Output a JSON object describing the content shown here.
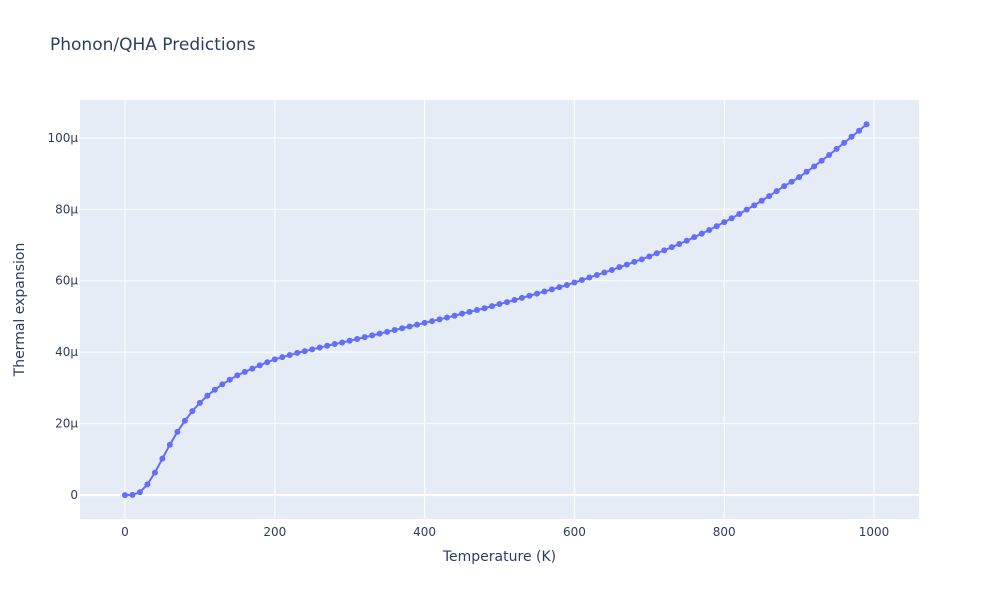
{
  "chart_data": {
    "type": "line",
    "title": "Phonon/QHA Predictions",
    "x_label": "Temperature (K)",
    "y_label": "Thermal expansion",
    "color": "#636efa",
    "grid": true,
    "xlim": [
      -60,
      1060
    ],
    "ylim": [
      -6.7e-06,
      0.0001106
    ],
    "xticks": [
      0,
      200,
      400,
      600,
      800,
      1000
    ],
    "yticks": [
      0,
      {
        "value": 2e-05,
        "label": "20µ"
      },
      {
        "value": 4e-05,
        "label": "40µ"
      },
      {
        "value": 6e-05,
        "label": "60µ"
      },
      {
        "value": 8e-05,
        "label": "80µ"
      },
      {
        "value": 0.0001,
        "label": "100µ"
      }
    ],
    "x": [
      0,
      10,
      20,
      30,
      40,
      50,
      60,
      70,
      80,
      90,
      100,
      110,
      120,
      130,
      140,
      150,
      160,
      170,
      180,
      190,
      200,
      210,
      220,
      230,
      240,
      250,
      260,
      270,
      280,
      290,
      300,
      310,
      320,
      330,
      340,
      350,
      360,
      370,
      380,
      390,
      400,
      410,
      420,
      430,
      440,
      450,
      460,
      470,
      480,
      490,
      500,
      510,
      520,
      530,
      540,
      550,
      560,
      570,
      580,
      590,
      600,
      610,
      620,
      630,
      640,
      650,
      660,
      670,
      680,
      690,
      700,
      710,
      720,
      730,
      740,
      750,
      760,
      770,
      780,
      790,
      800,
      810,
      820,
      830,
      840,
      850,
      860,
      870,
      880,
      890,
      900,
      910,
      920,
      930,
      940,
      950,
      960,
      970,
      980,
      990
    ],
    "values": [
      0,
      5e-08,
      8e-07,
      3e-06,
      6.3e-06,
      1.02e-05,
      1.41e-05,
      1.77e-05,
      2.08e-05,
      2.35e-05,
      2.58e-05,
      2.78e-05,
      2.95e-05,
      3.1e-05,
      3.23e-05,
      3.35e-05,
      3.45e-05,
      3.54e-05,
      3.63e-05,
      3.72e-05,
      3.8e-05,
      3.86e-05,
      3.92e-05,
      3.98e-05,
      4.03e-05,
      4.08e-05,
      4.13e-05,
      4.18e-05,
      4.23e-05,
      4.27e-05,
      4.32e-05,
      4.37e-05,
      4.42e-05,
      4.47e-05,
      4.52e-05,
      4.57e-05,
      4.62e-05,
      4.67e-05,
      4.72e-05,
      4.77e-05,
      4.82e-05,
      4.87e-05,
      4.92e-05,
      4.97e-05,
      5.02e-05,
      5.08e-05,
      5.13e-05,
      5.18e-05,
      5.23e-05,
      5.29e-05,
      5.35e-05,
      5.4e-05,
      5.46e-05,
      5.52e-05,
      5.58e-05,
      5.64e-05,
      5.7e-05,
      5.76e-05,
      5.82e-05,
      5.88e-05,
      5.95e-05,
      6.02e-05,
      6.09e-05,
      6.16e-05,
      6.23e-05,
      6.3e-05,
      6.38e-05,
      6.45e-05,
      6.53e-05,
      6.6e-05,
      6.68e-05,
      6.77e-05,
      6.85e-05,
      6.94e-05,
      7.03e-05,
      7.12e-05,
      7.22e-05,
      7.32e-05,
      7.42e-05,
      7.53e-05,
      7.64e-05,
      7.75e-05,
      7.87e-05,
      7.99e-05,
      8.11e-05,
      8.24e-05,
      8.37e-05,
      8.51e-05,
      8.65e-05,
      8.77e-05,
      8.9e-05,
      9.05e-05,
      9.2e-05,
      9.36e-05,
      9.52e-05,
      9.69e-05,
      9.86e-05,
      0.0001003,
      0.000102,
      0.0001038
    ]
  }
}
